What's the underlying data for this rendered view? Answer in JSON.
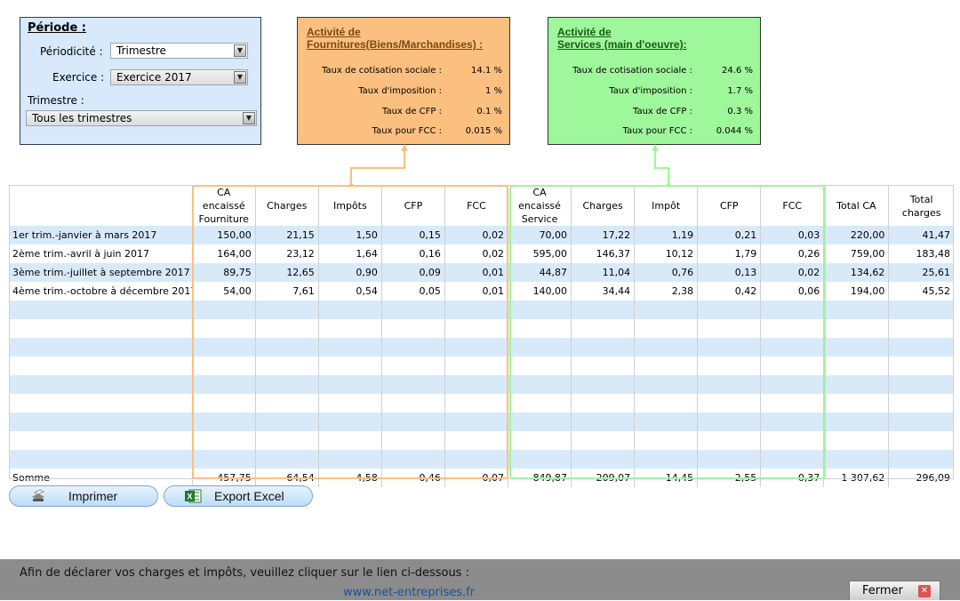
{
  "periode": {
    "title": "Période :",
    "periodicite_label": "Périodicité :",
    "periodicite_value": "Trimestre",
    "exercice_label": "Exercice :",
    "exercice_value": "Exercice 2017",
    "trimestre_label": "Trimestre :",
    "trimestre_value": "Tous les trimestres"
  },
  "fournitures": {
    "title_line1": "Activité de",
    "title_line2": "Fournitures(Biens/Marchandises) :",
    "color": "#fbbf7f",
    "rates": [
      {
        "label": "Taux de cotisation sociale :",
        "value": "14.1 %"
      },
      {
        "label": "Taux d'imposition :",
        "value": "1 %"
      },
      {
        "label": "Taux de CFP :",
        "value": "0.1 %"
      },
      {
        "label": "Taux pour FCC :",
        "value": "0.015 %"
      }
    ]
  },
  "services": {
    "title_line1": "Activité de",
    "title_line2": "Services (main d'oeuvre):",
    "color": "#9ef79a",
    "rates": [
      {
        "label": "Taux de cotisation sociale :",
        "value": "24.6 %"
      },
      {
        "label": "Taux d'imposition :",
        "value": "1.7 %"
      },
      {
        "label": "Taux de CFP :",
        "value": "0.3 %"
      },
      {
        "label": "Taux pour FCC :",
        "value": "0.044 %"
      }
    ]
  },
  "table": {
    "headers": [
      "",
      "CA encaissé Fourniture",
      "Charges",
      "Impôts",
      "CFP",
      "FCC",
      "CA encaissé Service",
      "Charges",
      "Impôt",
      "CFP",
      "FCC",
      "Total CA",
      "Total charges"
    ],
    "rows": [
      [
        "1er trim.-janvier à mars 2017",
        "150,00",
        "21,15",
        "1,50",
        "0,15",
        "0,02",
        "70,00",
        "17,22",
        "1,19",
        "0,21",
        "0,03",
        "220,00",
        "41,47"
      ],
      [
        "2ème trim.-avril à juin 2017",
        "164,00",
        "23,12",
        "1,64",
        "0,16",
        "0,02",
        "595,00",
        "146,37",
        "10,12",
        "1,79",
        "0,26",
        "759,00",
        "183,48"
      ],
      [
        "3ème trim.-juillet à septembre 2017",
        "89,75",
        "12,65",
        "0,90",
        "0,09",
        "0,01",
        "44,87",
        "11,04",
        "0,76",
        "0,13",
        "0,02",
        "134,62",
        "25,61"
      ],
      [
        "4ème trim.-octobre à décembre 2017",
        "54,00",
        "7,61",
        "0,54",
        "0,05",
        "0,01",
        "140,00",
        "34,44",
        "2,38",
        "0,42",
        "0,06",
        "194,00",
        "45,52"
      ]
    ],
    "empty_rows": 9,
    "sum": [
      "Somme",
      "457,75",
      "64,54",
      "4,58",
      "0,46",
      "0,07",
      "849,87",
      "209,07",
      "14,45",
      "2,55",
      "0,37",
      "1 307,62",
      "296,09"
    ]
  },
  "buttons": {
    "imprimer": "Imprimer",
    "export": "Export Excel",
    "fermer": "Fermer"
  },
  "footer": {
    "text": "Afin de déclarer vos charges et impôts, veuillez cliquer sur le lien ci-dessous :",
    "link": "www.net-entreprises.fr"
  }
}
